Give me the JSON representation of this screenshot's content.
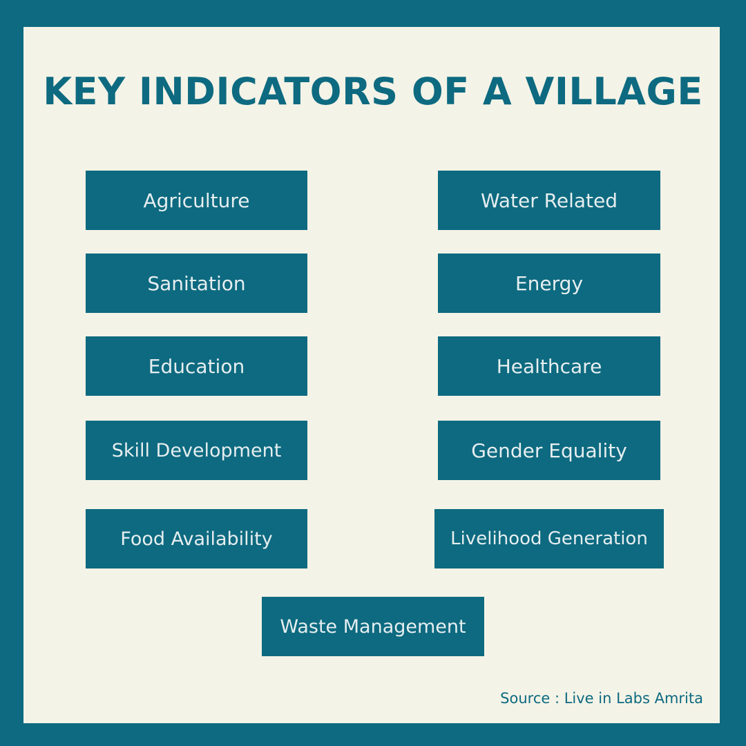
{
  "title": "KEY INDICATORS OF A VILLAGE",
  "indicators": {
    "agriculture": "Agriculture",
    "water_related": "Water Related",
    "sanitation": "Sanitation",
    "energy": "Energy",
    "education": "Education",
    "healthcare": "Healthcare",
    "skill_development": "Skill Development",
    "gender_equality": "Gender Equality",
    "food_availability": "Food Availability",
    "livelihood_generation": "Livelihood Generation",
    "waste_management": "Waste Management"
  },
  "source": "Source : Live in Labs Amrita",
  "colors": {
    "frame": "#0d6a80",
    "panel": "#f4f3e7",
    "box": "#0d6a80",
    "box_text": "#e6eef0",
    "title": "#0d6a80"
  }
}
